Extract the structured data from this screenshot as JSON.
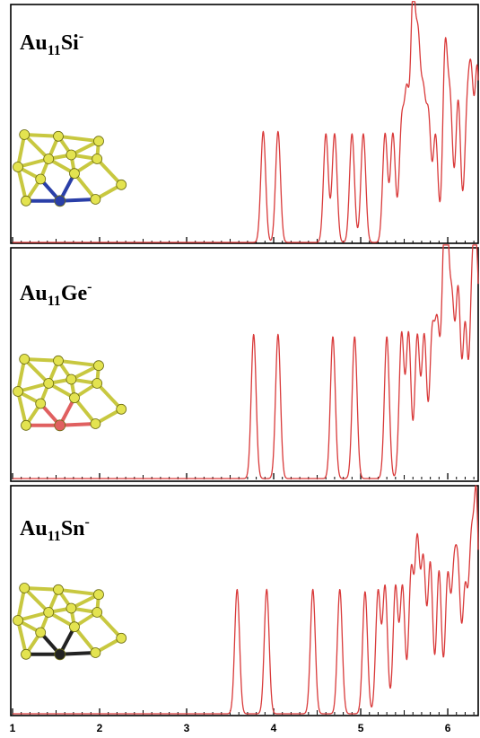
{
  "colors": {
    "line": "#d93a3a",
    "gold_atom": "#e3e350",
    "gold_bond": "#c8c840",
    "dopant_Si": "#2a3fa8",
    "dopant_Ge": "#e06060",
    "dopant_Sn": "#222222"
  },
  "chart_data": [
    {
      "type": "line",
      "title": "Au11Si-",
      "title_parts": {
        "base": "Au",
        "subscript": "11",
        "element": "Si",
        "superscript": "-"
      },
      "xlim": [
        1,
        6.35
      ],
      "ylim": [
        0,
        1.0
      ],
      "peaks": [
        {
          "x": 3.88,
          "y": 0.47
        },
        {
          "x": 4.05,
          "y": 0.47
        },
        {
          "x": 4.6,
          "y": 0.46
        },
        {
          "x": 4.7,
          "y": 0.46
        },
        {
          "x": 4.9,
          "y": 0.46
        },
        {
          "x": 5.03,
          "y": 0.46
        },
        {
          "x": 5.28,
          "y": 0.46
        },
        {
          "x": 5.37,
          "y": 0.46
        },
        {
          "x": 5.47,
          "y": 0.48
        },
        {
          "x": 5.53,
          "y": 0.58
        },
        {
          "x": 5.6,
          "y": 0.98
        },
        {
          "x": 5.66,
          "y": 0.76
        },
        {
          "x": 5.72,
          "y": 0.55
        },
        {
          "x": 5.78,
          "y": 0.5
        },
        {
          "x": 5.86,
          "y": 0.45
        },
        {
          "x": 5.97,
          "y": 0.8
        },
        {
          "x": 6.03,
          "y": 0.55
        },
        {
          "x": 6.12,
          "y": 0.6
        },
        {
          "x": 6.22,
          "y": 0.48
        },
        {
          "x": 6.27,
          "y": 0.63
        },
        {
          "x": 6.34,
          "y": 0.72
        }
      ],
      "x_ticks": [
        1,
        2,
        3,
        4,
        5,
        6
      ],
      "dopant": "Si"
    },
    {
      "type": "line",
      "title": "Au11Ge-",
      "title_parts": {
        "base": "Au",
        "subscript": "11",
        "element": "Ge",
        "superscript": "-"
      },
      "xlim": [
        1,
        6.35
      ],
      "ylim": [
        0,
        1.0
      ],
      "peaks": [
        {
          "x": 3.77,
          "y": 0.63
        },
        {
          "x": 4.05,
          "y": 0.63
        },
        {
          "x": 4.68,
          "y": 0.62
        },
        {
          "x": 4.93,
          "y": 0.62
        },
        {
          "x": 5.3,
          "y": 0.62
        },
        {
          "x": 5.47,
          "y": 0.63
        },
        {
          "x": 5.55,
          "y": 0.63
        },
        {
          "x": 5.65,
          "y": 0.62
        },
        {
          "x": 5.73,
          "y": 0.62
        },
        {
          "x": 5.82,
          "y": 0.6
        },
        {
          "x": 5.88,
          "y": 0.62
        },
        {
          "x": 5.95,
          "y": 0.7
        },
        {
          "x": 5.99,
          "y": 0.92
        },
        {
          "x": 6.05,
          "y": 0.7
        },
        {
          "x": 6.12,
          "y": 0.8
        },
        {
          "x": 6.2,
          "y": 0.66
        },
        {
          "x": 6.28,
          "y": 0.78
        },
        {
          "x": 6.33,
          "y": 0.82
        },
        {
          "x": 6.38,
          "y": 0.32
        }
      ],
      "x_ticks": [
        1,
        2,
        3,
        4,
        5,
        6
      ],
      "dopant": "Ge"
    },
    {
      "type": "line",
      "title": "Au11Sn-",
      "title_parts": {
        "base": "Au",
        "subscript": "11",
        "element": "Sn",
        "superscript": "-"
      },
      "xlim": [
        1,
        6.35
      ],
      "ylim": [
        0,
        1.0
      ],
      "peaks": [
        {
          "x": 3.58,
          "y": 0.55
        },
        {
          "x": 3.92,
          "y": 0.55
        },
        {
          "x": 4.45,
          "y": 0.55
        },
        {
          "x": 4.76,
          "y": 0.55
        },
        {
          "x": 5.05,
          "y": 0.54
        },
        {
          "x": 5.2,
          "y": 0.54
        },
        {
          "x": 5.28,
          "y": 0.56
        },
        {
          "x": 5.4,
          "y": 0.56
        },
        {
          "x": 5.48,
          "y": 0.56
        },
        {
          "x": 5.58,
          "y": 0.62
        },
        {
          "x": 5.65,
          "y": 0.74
        },
        {
          "x": 5.72,
          "y": 0.66
        },
        {
          "x": 5.8,
          "y": 0.66
        },
        {
          "x": 5.9,
          "y": 0.63
        },
        {
          "x": 6.0,
          "y": 0.6
        },
        {
          "x": 6.07,
          "y": 0.55
        },
        {
          "x": 6.12,
          "y": 0.56
        },
        {
          "x": 6.2,
          "y": 0.54
        },
        {
          "x": 6.27,
          "y": 0.7
        },
        {
          "x": 6.33,
          "y": 0.92
        }
      ],
      "x_ticks": [
        1,
        2,
        3,
        4,
        5,
        6
      ],
      "dopant": "Sn"
    }
  ]
}
